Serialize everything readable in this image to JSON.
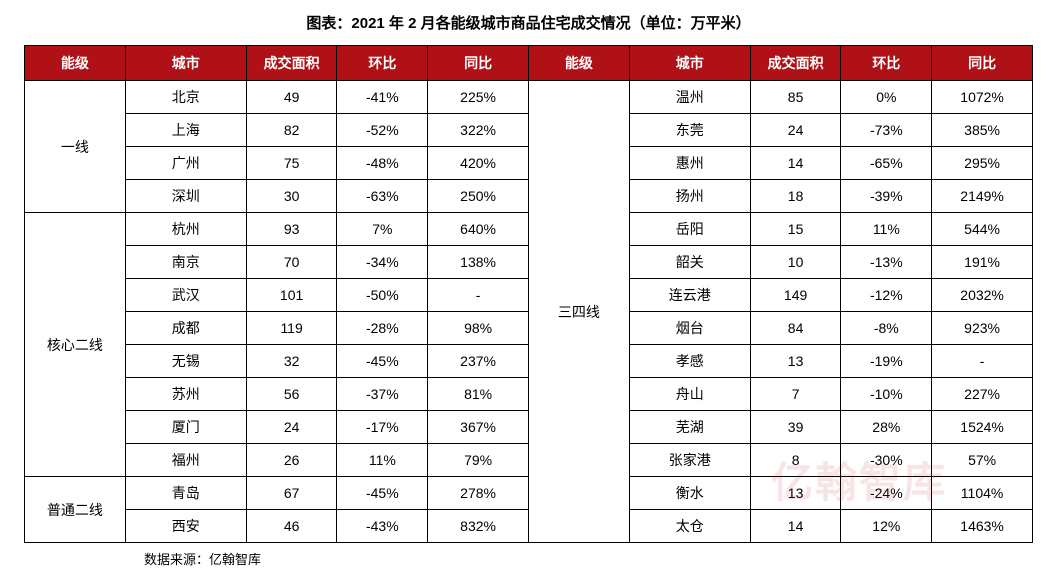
{
  "title": "图表：2021 年 2 月各能级城市商品住宅成交情况（单位：万平米）",
  "source_label": "数据来源：亿翰智库",
  "watermark_text": "亿翰智库",
  "colors": {
    "header_bg": "#b01116",
    "header_fg": "#ffffff",
    "border": "#000000",
    "text": "#000000",
    "watermark": "rgba(200,30,35,0.12)"
  },
  "columns": {
    "tier": "能级",
    "city": "城市",
    "area": "成交面积",
    "mom": "环比",
    "yoy": "同比"
  },
  "left": {
    "groups": [
      {
        "tier": "一线",
        "rows": [
          {
            "city": "北京",
            "area": "49",
            "mom": "-41%",
            "yoy": "225%"
          },
          {
            "city": "上海",
            "area": "82",
            "mom": "-52%",
            "yoy": "322%"
          },
          {
            "city": "广州",
            "area": "75",
            "mom": "-48%",
            "yoy": "420%"
          },
          {
            "city": "深圳",
            "area": "30",
            "mom": "-63%",
            "yoy": "250%"
          }
        ]
      },
      {
        "tier": "核心二线",
        "rows": [
          {
            "city": "杭州",
            "area": "93",
            "mom": "7%",
            "yoy": "640%"
          },
          {
            "city": "南京",
            "area": "70",
            "mom": "-34%",
            "yoy": "138%"
          },
          {
            "city": "武汉",
            "area": "101",
            "mom": "-50%",
            "yoy": "-"
          },
          {
            "city": "成都",
            "area": "119",
            "mom": "-28%",
            "yoy": "98%"
          },
          {
            "city": "无锡",
            "area": "32",
            "mom": "-45%",
            "yoy": "237%"
          },
          {
            "city": "苏州",
            "area": "56",
            "mom": "-37%",
            "yoy": "81%"
          },
          {
            "city": "厦门",
            "area": "24",
            "mom": "-17%",
            "yoy": "367%"
          },
          {
            "city": "福州",
            "area": "26",
            "mom": "11%",
            "yoy": "79%"
          }
        ]
      },
      {
        "tier": "普通二线",
        "rows": [
          {
            "city": "青岛",
            "area": "67",
            "mom": "-45%",
            "yoy": "278%"
          },
          {
            "city": "西安",
            "area": "46",
            "mom": "-43%",
            "yoy": "832%"
          }
        ]
      }
    ]
  },
  "right": {
    "groups": [
      {
        "tier": "三四线",
        "rows": [
          {
            "city": "温州",
            "area": "85",
            "mom": "0%",
            "yoy": "1072%"
          },
          {
            "city": "东莞",
            "area": "24",
            "mom": "-73%",
            "yoy": "385%"
          },
          {
            "city": "惠州",
            "area": "14",
            "mom": "-65%",
            "yoy": "295%"
          },
          {
            "city": "扬州",
            "area": "18",
            "mom": "-39%",
            "yoy": "2149%"
          },
          {
            "city": "岳阳",
            "area": "15",
            "mom": "11%",
            "yoy": "544%"
          },
          {
            "city": "韶关",
            "area": "10",
            "mom": "-13%",
            "yoy": "191%"
          },
          {
            "city": "连云港",
            "area": "149",
            "mom": "-12%",
            "yoy": "2032%"
          },
          {
            "city": "烟台",
            "area": "84",
            "mom": "-8%",
            "yoy": "923%"
          },
          {
            "city": "孝感",
            "area": "13",
            "mom": "-19%",
            "yoy": "-"
          },
          {
            "city": "舟山",
            "area": "7",
            "mom": "-10%",
            "yoy": "227%"
          },
          {
            "city": "芜湖",
            "area": "39",
            "mom": "28%",
            "yoy": "1524%"
          },
          {
            "city": "张家港",
            "area": "8",
            "mom": "-30%",
            "yoy": "57%"
          },
          {
            "city": "衡水",
            "area": "13",
            "mom": "-24%",
            "yoy": "1104%"
          },
          {
            "city": "太仓",
            "area": "14",
            "mom": "12%",
            "yoy": "1463%"
          }
        ]
      }
    ]
  }
}
